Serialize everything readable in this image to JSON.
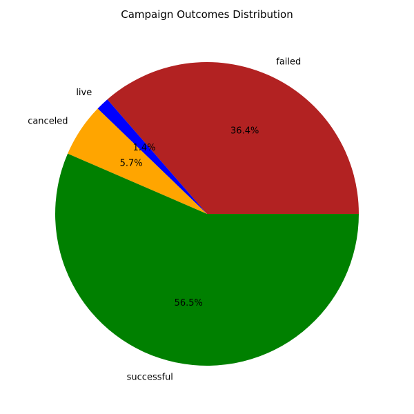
{
  "chart_data": {
    "type": "pie",
    "title": "Campaign Outcomes Distribution",
    "categories": [
      "failed",
      "live",
      "canceled",
      "successful"
    ],
    "values": [
      36.4,
      1.4,
      5.7,
      56.5
    ],
    "percent_labels": [
      "36.4%",
      "1.4%",
      "5.7%",
      "56.5%"
    ],
    "colors": [
      "#b22222",
      "#0000ff",
      "#ffa500",
      "#008000"
    ],
    "start_angle_deg": 0,
    "direction": "counterclockwise",
    "legend": "none"
  }
}
